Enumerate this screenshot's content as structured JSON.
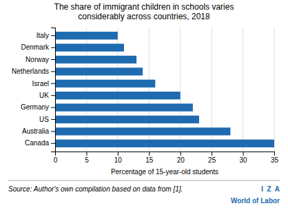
{
  "chart_data": {
    "type": "bar",
    "orientation": "horizontal",
    "title": "The share of immigrant children in schools varies\nconsiderably across countries, 2018",
    "xlabel": "Percentage of 15-year-old students",
    "categories": [
      "Italy",
      "Denmark",
      "Norway",
      "Netherlands",
      "Israel",
      "UK",
      "Germany",
      "US",
      "Australia",
      "Canada"
    ],
    "values": [
      10.0,
      11.0,
      13.0,
      14.0,
      16.0,
      20.0,
      22.0,
      23.0,
      28.0,
      35.0
    ],
    "color": "#1F6BB0",
    "xlim": [
      0,
      35
    ],
    "xticks": [
      0,
      5,
      10,
      15,
      20,
      25,
      30,
      35
    ],
    "grid": true,
    "annotations": [
      "Source: Author's own compilation based on data from [1].",
      "I  Z  A",
      "World of Labor"
    ]
  }
}
